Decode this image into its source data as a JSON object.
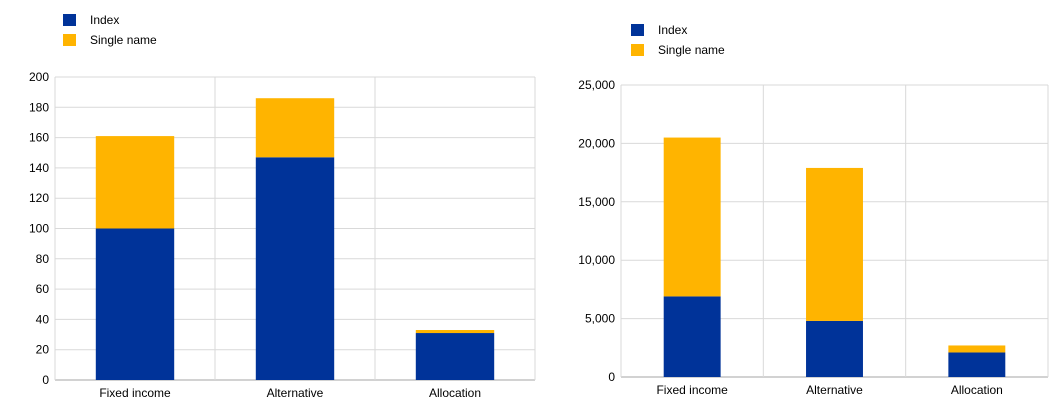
{
  "colors": {
    "index": "#003399",
    "single_name": "#FFB400",
    "grid": "#D9D9D9",
    "axis": "#A6A6A6"
  },
  "chart_data": [
    {
      "type": "bar",
      "stacked": true,
      "categories": [
        "Fixed income",
        "Alternative",
        "Allocation"
      ],
      "series": [
        {
          "name": "Index",
          "values": [
            100,
            147,
            31
          ]
        },
        {
          "name": "Single name",
          "values": [
            61,
            39,
            2
          ]
        }
      ],
      "y_tick_labels": [
        "0",
        "20",
        "40",
        "60",
        "80",
        "100",
        "120",
        "140",
        "160",
        "180",
        "200"
      ],
      "ylim": [
        0,
        200
      ],
      "grid": true,
      "legend_position": "top-left",
      "title": "",
      "xlabel": "",
      "ylabel": ""
    },
    {
      "type": "bar",
      "stacked": true,
      "categories": [
        "Fixed income",
        "Alternative",
        "Allocation"
      ],
      "series": [
        {
          "name": "Index",
          "values": [
            6900,
            4800,
            2100
          ]
        },
        {
          "name": "Single name",
          "values": [
            13600,
            13100,
            600
          ]
        }
      ],
      "y_tick_labels": [
        "0",
        "5,000",
        "10,000",
        "15,000",
        "20,000",
        "25,000"
      ],
      "ylim": [
        0,
        25000
      ],
      "grid": true,
      "legend_position": "top-left",
      "title": "",
      "xlabel": "",
      "ylabel": ""
    }
  ]
}
